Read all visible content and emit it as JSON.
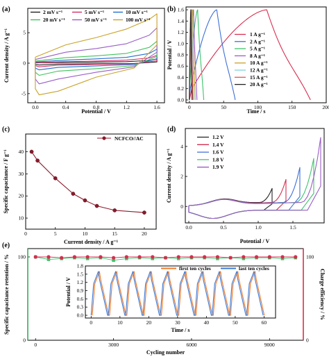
{
  "chart_data": [
    {
      "panel": "a",
      "type": "line",
      "xlabel": "Potential / V",
      "ylabel": "Current density / A g⁻¹",
      "xlim": [
        -0.1,
        1.7
      ],
      "ylim": [
        -6.5,
        9
      ],
      "xticks": [
        0.0,
        0.4,
        0.8,
        1.2,
        1.6
      ],
      "xtick_labels": [
        "0.0",
        "0.4",
        "0.8",
        "1.2",
        "1.6"
      ],
      "yticks": [
        -5,
        0,
        5
      ],
      "ytick_labels": [
        "-5",
        "0",
        "5"
      ],
      "legend": "top-left",
      "series": [
        {
          "name": "2 mV s⁻¹",
          "color": "#222222",
          "upper": [
            [
              0,
              0.05
            ],
            [
              0.4,
              0.12
            ],
            [
              0.8,
              0.18
            ],
            [
              1.2,
              0.25
            ],
            [
              1.5,
              0.45
            ],
            [
              1.6,
              0.7
            ]
          ],
          "lower": [
            [
              1.6,
              0.2
            ],
            [
              1.3,
              -0.05
            ],
            [
              0.8,
              -0.1
            ],
            [
              0.3,
              -0.15
            ],
            [
              0.05,
              -0.3
            ],
            [
              0,
              -0.2
            ]
          ]
        },
        {
          "name": "5 mV s⁻¹",
          "color": "#d62d6a",
          "upper": [
            [
              0,
              0.1
            ],
            [
              0.4,
              0.25
            ],
            [
              0.8,
              0.35
            ],
            [
              1.2,
              0.5
            ],
            [
              1.5,
              0.85
            ],
            [
              1.6,
              1.3
            ]
          ],
          "lower": [
            [
              1.6,
              0.4
            ],
            [
              1.3,
              -0.1
            ],
            [
              0.8,
              -0.2
            ],
            [
              0.3,
              -0.35
            ],
            [
              0.05,
              -0.6
            ],
            [
              0,
              -0.4
            ]
          ]
        },
        {
          "name": "10 mV s⁻¹",
          "color": "#1f6fd1",
          "upper": [
            [
              0,
              0.2
            ],
            [
              0.4,
              0.5
            ],
            [
              0.8,
              0.7
            ],
            [
              1.2,
              0.95
            ],
            [
              1.5,
              1.6
            ],
            [
              1.6,
              2.3
            ]
          ],
          "lower": [
            [
              1.6,
              0.7
            ],
            [
              1.3,
              -0.2
            ],
            [
              0.8,
              -0.45
            ],
            [
              0.3,
              -0.7
            ],
            [
              0.05,
              -1.1
            ],
            [
              0,
              -0.8
            ]
          ]
        },
        {
          "name": "20 mV s⁻¹",
          "color": "#3fc25b",
          "upper": [
            [
              0,
              0.35
            ],
            [
              0.4,
              0.9
            ],
            [
              0.8,
              1.2
            ],
            [
              1.2,
              1.6
            ],
            [
              1.5,
              2.6
            ],
            [
              1.6,
              3.6
            ]
          ],
          "lower": [
            [
              1.6,
              1.1
            ],
            [
              1.3,
              -0.4
            ],
            [
              0.8,
              -0.9
            ],
            [
              0.3,
              -1.3
            ],
            [
              0.05,
              -2.0
            ],
            [
              0,
              -1.5
            ]
          ]
        },
        {
          "name": "50 mV s⁻¹",
          "color": "#9a5dc8",
          "upper": [
            [
              0,
              0.6
            ],
            [
              0.4,
              1.8
            ],
            [
              0.8,
              2.4
            ],
            [
              1.2,
              3.2
            ],
            [
              1.5,
              4.6
            ],
            [
              1.6,
              5.8
            ]
          ],
          "lower": [
            [
              1.6,
              1.8
            ],
            [
              1.3,
              -0.6
            ],
            [
              0.8,
              -1.5
            ],
            [
              0.3,
              -2.6
            ],
            [
              0.05,
              -3.4
            ],
            [
              0,
              -2.6
            ]
          ]
        },
        {
          "name": "100 mV s⁻¹",
          "color": "#c9a227",
          "upper": [
            [
              0,
              1.0
            ],
            [
              0.4,
              3.0
            ],
            [
              0.8,
              4.2
            ],
            [
              1.2,
              5.6
            ],
            [
              1.5,
              7.2
            ],
            [
              1.6,
              8.1
            ]
          ],
          "lower": [
            [
              1.6,
              3.0
            ],
            [
              1.3,
              -0.8
            ],
            [
              0.8,
              -2.3
            ],
            [
              0.3,
              -4.6
            ],
            [
              0.05,
              -5.2
            ],
            [
              0,
              -4.2
            ]
          ]
        }
      ]
    },
    {
      "panel": "b",
      "type": "line",
      "xlabel": "Time / s",
      "ylabel": "Potential / V",
      "xlim": [
        -5,
        200
      ],
      "ylim": [
        -0.05,
        1.65
      ],
      "xticks": [
        0,
        50,
        100,
        150,
        200
      ],
      "xtick_labels": [
        "0",
        "50",
        "100",
        "150",
        "200"
      ],
      "yticks": [
        0.0,
        0.2,
        0.4,
        0.6,
        0.8,
        1.0,
        1.2,
        1.4,
        1.6
      ],
      "ytick_labels": [
        "0.0",
        "0.2",
        "0.4",
        "0.6",
        "0.8",
        "1.0",
        "1.2",
        "1.4",
        "1.6"
      ],
      "legend": "right",
      "series": [
        {
          "name": "1 A g⁻¹",
          "color": "#d62d4e",
          "charge_time": 113,
          "discharge_time": 177
        },
        {
          "name": "2 A g⁻¹",
          "color": "#3d6fd6",
          "charge_time": 40,
          "discharge_time": 67
        },
        {
          "name": "5 A g⁻¹",
          "color": "#3cc36a",
          "charge_time": 12,
          "discharge_time": 21
        },
        {
          "name": "8 A g⁻¹",
          "color": "#9a5dc8",
          "charge_time": 6,
          "discharge_time": 11
        },
        {
          "name": "10 A g⁻¹",
          "color": "#c9a227",
          "charge_time": 4.5,
          "discharge_time": 8.5
        },
        {
          "name": "12 A g⁻¹",
          "color": "#7fd3e0",
          "charge_time": 3.5,
          "discharge_time": 6.5
        },
        {
          "name": "15 A g⁻¹",
          "color": "#e8534f",
          "charge_time": 2.8,
          "discharge_time": 5
        },
        {
          "name": "20 A g⁻¹",
          "color": "#222222",
          "charge_time": 2,
          "discharge_time": 3.8
        }
      ]
    },
    {
      "panel": "c",
      "type": "line",
      "xlabel": "Current density / A g⁻¹",
      "ylabel": "Specific capacitance / F g⁻¹",
      "xlim": [
        0,
        22
      ],
      "ylim": [
        5,
        48
      ],
      "xticks": [
        0,
        5,
        10,
        15,
        20
      ],
      "xtick_labels": [
        "0",
        "5",
        "10",
        "15",
        "20"
      ],
      "yticks": [
        10,
        20,
        30,
        40
      ],
      "ytick_labels": [
        "10",
        "20",
        "30",
        "40"
      ],
      "legend": "top-right",
      "series": [
        {
          "name": "NCFCO//AC",
          "color": "#8b1a2b",
          "x": [
            1,
            2,
            5,
            8,
            10,
            12,
            15,
            20
          ],
          "y": [
            40,
            36,
            28,
            21,
            18,
            15.5,
            13.5,
            12.5
          ]
        }
      ]
    },
    {
      "panel": "d",
      "type": "line",
      "xlabel": "Potential / V",
      "ylabel": "Current density / A g⁻¹",
      "xlim": [
        -0.05,
        1.95
      ],
      "ylim": [
        -1.1,
        5.2
      ],
      "xticks": [
        0.0,
        0.5,
        1.0,
        1.5
      ],
      "xtick_labels": [
        "0.0",
        "0.5",
        "1.0",
        "1.5"
      ],
      "yticks": [
        0,
        2,
        4
      ],
      "ytick_labels": [
        "0",
        "2",
        "4"
      ],
      "legend": "top-left",
      "series": [
        {
          "name": "1.2 V",
          "color": "#222222",
          "vmax": 1.2,
          "peak": 1.2
        },
        {
          "name": "1.4 V",
          "color": "#d62d4e",
          "vmax": 1.4,
          "peak": 1.8
        },
        {
          "name": "1.6 V",
          "color": "#3d6fd6",
          "vmax": 1.6,
          "peak": 2.6
        },
        {
          "name": "1.8 V",
          "color": "#3cc36a",
          "vmax": 1.8,
          "peak": 3.2
        },
        {
          "name": "1.9 V",
          "color": "#9a5dc8",
          "vmax": 1.9,
          "peak": 4.6
        }
      ]
    },
    {
      "panel": "e",
      "type": "scatter",
      "xlabel": "Cycling number",
      "ylabel_left": "Specific capacitance retention / %",
      "ylabel_right": "Charge efficiency / %",
      "xlim": [
        -300,
        10300
      ],
      "ylim": [
        0,
        110
      ],
      "xticks": [
        0,
        3000,
        6000,
        9000
      ],
      "xtick_labels": [
        "0",
        "3000",
        "6000",
        "9000"
      ],
      "yticks": [
        0,
        100
      ],
      "ytick_labels": [
        "0",
        "100"
      ],
      "series": [
        {
          "name": "retention",
          "color": "#3cc36a",
          "x": [
            0,
            500,
            1000,
            1500,
            2000,
            2500,
            3000,
            3500,
            4000,
            4500,
            5000,
            5500,
            6000,
            6500,
            7000,
            7500,
            8000,
            8500,
            9000,
            9500,
            10000
          ],
          "y": [
            100,
            97,
            98,
            99,
            98,
            99,
            96,
            98,
            99,
            98,
            99,
            98,
            99,
            99,
            98,
            99,
            98,
            99,
            99,
            98,
            99
          ]
        },
        {
          "name": "charge efficiency",
          "color": "#d62d4e",
          "x": [
            0,
            500,
            1000,
            1500,
            2000,
            2500,
            3000,
            3500,
            4000,
            4500,
            5000,
            5500,
            6000,
            6500,
            7000,
            7500,
            8000,
            8500,
            9000,
            9500,
            10000
          ],
          "y": [
            100,
            100,
            99,
            100,
            100,
            100,
            99,
            100,
            100,
            100,
            99,
            100,
            100,
            100,
            100,
            99,
            100,
            100,
            100,
            100,
            100
          ]
        }
      ],
      "inset": {
        "type": "line",
        "xlabel": "Time / s",
        "ylabel": "Potential / V",
        "xlim": [
          -2,
          64
        ],
        "ylim": [
          -0.1,
          1.8
        ],
        "xticks": [
          0,
          10,
          20,
          30,
          40,
          50,
          60
        ],
        "xtick_labels": [
          "0",
          "10",
          "20",
          "30",
          "40",
          "50",
          "60"
        ],
        "yticks": [
          0.0,
          0.3,
          0.6,
          0.9,
          1.2,
          1.5,
          1.8
        ],
        "ytick_labels": [
          "0.0",
          "0.3",
          "0.6",
          "0.9",
          "1.2",
          "1.5",
          "1.8"
        ],
        "legend": "top",
        "cycle_period": 6,
        "charge_time": 2.5,
        "vmax": 1.6,
        "series": [
          {
            "name": "first ten cycles",
            "color": "#f07a2a",
            "offset": 0.4
          },
          {
            "name": "last ten cycles",
            "color": "#3d7ad6",
            "offset": 0
          }
        ]
      }
    }
  ]
}
